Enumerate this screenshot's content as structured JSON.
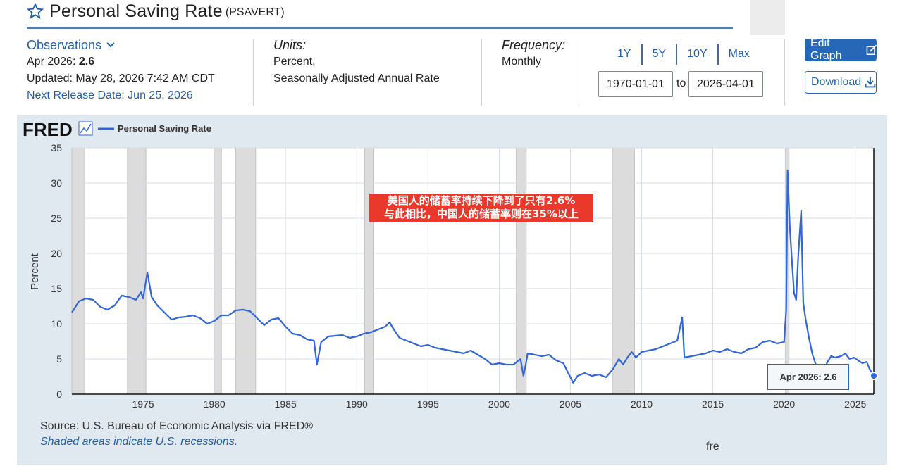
{
  "header": {
    "title": "Personal Saving Rate",
    "series_code": "(PSAVERT)"
  },
  "observations": {
    "label": "Observations",
    "latest_label": "Apr 2026:",
    "latest_value": "2.6",
    "updated": "Updated: May 28, 2026 7:42 AM CDT",
    "next_release": "Next Release Date: Jun 25, 2026"
  },
  "units": {
    "label": "Units:",
    "line1": "Percent,",
    "line2": "Seasonally Adjusted Annual Rate"
  },
  "frequency": {
    "label": "Frequency:",
    "value": "Monthly"
  },
  "range_buttons": [
    "1Y",
    "5Y",
    "10Y",
    "Max"
  ],
  "date_range": {
    "start": "1970-01-01",
    "to_label": "to",
    "end": "2026-04-01"
  },
  "actions": {
    "edit": "Edit Graph",
    "download": "Download"
  },
  "chart_data": {
    "type": "line",
    "title": "",
    "logo": "FRED",
    "legend": "Personal Saving Rate",
    "ylabel": "Percent",
    "xlabel": "",
    "xlim": [
      1970.0,
      2026.3
    ],
    "ylim": [
      0,
      35
    ],
    "yticks": [
      0,
      5,
      10,
      15,
      20,
      25,
      30,
      35
    ],
    "xticks": [
      1975,
      1980,
      1985,
      1990,
      1995,
      2000,
      2005,
      2010,
      2015,
      2020,
      2025
    ],
    "grid": true,
    "line_color": "#3367d6",
    "recessions": [
      [
        1969.95,
        1970.9
      ],
      [
        1973.9,
        1975.2
      ],
      [
        1980.0,
        1980.5
      ],
      [
        1981.5,
        1982.9
      ],
      [
        1990.55,
        1991.2
      ],
      [
        2001.2,
        2001.9
      ],
      [
        2007.95,
        2009.5
      ],
      [
        2020.1,
        2020.35
      ]
    ],
    "series": [
      {
        "name": "Personal Saving Rate",
        "points": [
          [
            1970.0,
            11.6
          ],
          [
            1970.5,
            13.2
          ],
          [
            1971.0,
            13.6
          ],
          [
            1971.5,
            13.4
          ],
          [
            1972.0,
            12.4
          ],
          [
            1972.5,
            12.0
          ],
          [
            1973.0,
            12.6
          ],
          [
            1973.5,
            14.0
          ],
          [
            1974.0,
            13.8
          ],
          [
            1974.5,
            13.4
          ],
          [
            1974.85,
            14.5
          ],
          [
            1975.0,
            13.6
          ],
          [
            1975.3,
            17.3
          ],
          [
            1975.6,
            13.8
          ],
          [
            1976.0,
            12.6
          ],
          [
            1976.5,
            11.6
          ],
          [
            1977.0,
            10.6
          ],
          [
            1977.5,
            10.9
          ],
          [
            1978.0,
            11.0
          ],
          [
            1978.5,
            11.2
          ],
          [
            1979.0,
            10.8
          ],
          [
            1979.5,
            10.0
          ],
          [
            1980.0,
            10.4
          ],
          [
            1980.5,
            11.2
          ],
          [
            1981.0,
            11.2
          ],
          [
            1981.5,
            11.9
          ],
          [
            1982.0,
            12.0
          ],
          [
            1982.5,
            11.8
          ],
          [
            1983.0,
            10.8
          ],
          [
            1983.5,
            9.8
          ],
          [
            1984.0,
            10.6
          ],
          [
            1984.5,
            10.8
          ],
          [
            1985.0,
            9.6
          ],
          [
            1985.5,
            8.6
          ],
          [
            1986.0,
            8.4
          ],
          [
            1986.5,
            7.8
          ],
          [
            1987.0,
            7.6
          ],
          [
            1987.2,
            4.2
          ],
          [
            1987.5,
            7.4
          ],
          [
            1988.0,
            8.2
          ],
          [
            1988.5,
            8.3
          ],
          [
            1989.0,
            8.4
          ],
          [
            1989.5,
            8.0
          ],
          [
            1990.0,
            8.2
          ],
          [
            1990.5,
            8.6
          ],
          [
            1991.0,
            8.8
          ],
          [
            1991.5,
            9.2
          ],
          [
            1992.0,
            9.6
          ],
          [
            1992.3,
            10.2
          ],
          [
            1992.6,
            9.2
          ],
          [
            1993.0,
            8.0
          ],
          [
            1993.5,
            7.6
          ],
          [
            1994.0,
            7.2
          ],
          [
            1994.5,
            6.8
          ],
          [
            1995.0,
            7.0
          ],
          [
            1995.5,
            6.6
          ],
          [
            1996.0,
            6.4
          ],
          [
            1996.5,
            6.2
          ],
          [
            1997.0,
            6.0
          ],
          [
            1997.5,
            5.8
          ],
          [
            1998.0,
            6.2
          ],
          [
            1998.5,
            5.6
          ],
          [
            1999.0,
            5.0
          ],
          [
            1999.5,
            4.2
          ],
          [
            2000.0,
            4.4
          ],
          [
            2000.5,
            4.2
          ],
          [
            2001.0,
            4.2
          ],
          [
            2001.5,
            5.0
          ],
          [
            2001.7,
            2.6
          ],
          [
            2001.9,
            4.6
          ],
          [
            2002.0,
            5.8
          ],
          [
            2002.5,
            5.6
          ],
          [
            2003.0,
            5.4
          ],
          [
            2003.5,
            5.6
          ],
          [
            2004.0,
            4.8
          ],
          [
            2004.5,
            4.4
          ],
          [
            2004.9,
            2.8
          ],
          [
            2005.2,
            1.6
          ],
          [
            2005.5,
            2.6
          ],
          [
            2006.0,
            3.0
          ],
          [
            2006.5,
            2.6
          ],
          [
            2007.0,
            2.8
          ],
          [
            2007.5,
            2.4
          ],
          [
            2008.0,
            3.6
          ],
          [
            2008.4,
            5.0
          ],
          [
            2008.7,
            4.2
          ],
          [
            2009.0,
            5.2
          ],
          [
            2009.3,
            6.0
          ],
          [
            2009.6,
            5.2
          ],
          [
            2010.0,
            6.0
          ],
          [
            2010.5,
            6.2
          ],
          [
            2011.0,
            6.4
          ],
          [
            2011.5,
            6.8
          ],
          [
            2012.0,
            7.2
          ],
          [
            2012.5,
            7.6
          ],
          [
            2012.85,
            10.9
          ],
          [
            2013.0,
            5.2
          ],
          [
            2013.5,
            5.4
          ],
          [
            2014.0,
            5.6
          ],
          [
            2014.5,
            5.8
          ],
          [
            2015.0,
            6.2
          ],
          [
            2015.5,
            6.0
          ],
          [
            2016.0,
            6.4
          ],
          [
            2016.5,
            6.0
          ],
          [
            2017.0,
            5.8
          ],
          [
            2017.5,
            6.4
          ],
          [
            2018.0,
            6.6
          ],
          [
            2018.5,
            7.4
          ],
          [
            2019.0,
            7.6
          ],
          [
            2019.5,
            7.2
          ],
          [
            2020.0,
            7.4
          ],
          [
            2020.15,
            12.0
          ],
          [
            2020.25,
            31.8
          ],
          [
            2020.4,
            24.0
          ],
          [
            2020.55,
            19.0
          ],
          [
            2020.7,
            14.4
          ],
          [
            2020.85,
            13.4
          ],
          [
            2021.0,
            19.8
          ],
          [
            2021.2,
            26.0
          ],
          [
            2021.35,
            13.0
          ],
          [
            2021.5,
            10.8
          ],
          [
            2021.75,
            8.0
          ],
          [
            2022.0,
            5.6
          ],
          [
            2022.3,
            3.8
          ],
          [
            2022.6,
            3.2
          ],
          [
            2022.9,
            3.4
          ],
          [
            2023.0,
            4.4
          ],
          [
            2023.3,
            5.4
          ],
          [
            2023.6,
            5.2
          ],
          [
            2024.0,
            5.4
          ],
          [
            2024.3,
            5.8
          ],
          [
            2024.6,
            5.0
          ],
          [
            2024.9,
            5.2
          ],
          [
            2025.2,
            4.8
          ],
          [
            2025.5,
            4.4
          ],
          [
            2025.8,
            4.6
          ],
          [
            2026.0,
            3.6
          ],
          [
            2026.3,
            2.6
          ]
        ]
      }
    ],
    "annotation": {
      "line1": "美国人的储蓄率持续下降到了只有2.6%",
      "line2": "与此相比，中国人的储蓄率则在35%以上"
    },
    "tooltip": {
      "label": "Apr 2026:",
      "value": "2.6"
    }
  },
  "footer": {
    "source": "Source: U.S. Bureau of Economic Analysis via FRED®",
    "shaded_note": "Shaded areas indicate U.S. recessions.",
    "url_fragment": "fre"
  }
}
